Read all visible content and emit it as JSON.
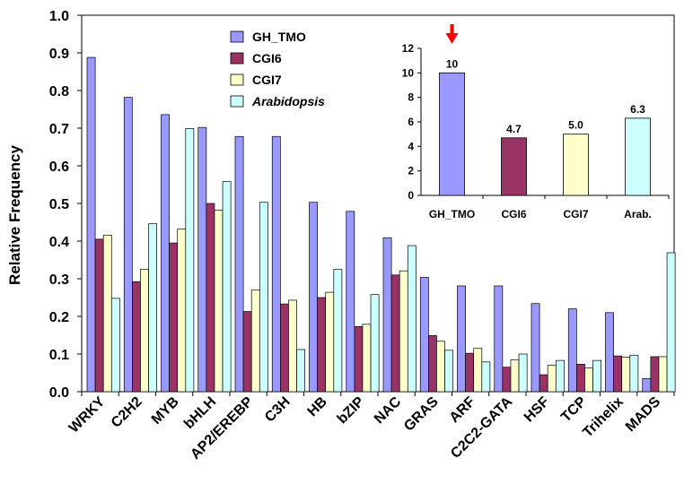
{
  "chart_data": {
    "main": {
      "type": "bar",
      "ylabel": "Relative Frequency",
      "ylim": [
        0,
        1.0
      ],
      "yticks": [
        "0.0",
        "0.1",
        "0.2",
        "0.3",
        "0.4",
        "0.5",
        "0.6",
        "0.7",
        "0.8",
        "0.9",
        "1.0"
      ],
      "categories": [
        "WRKY",
        "C2H2",
        "MYB",
        "bHLH",
        "AP2/EREBP",
        "C3H",
        "HB",
        "bZIP",
        "NAC",
        "GRAS",
        "ARF",
        "C2C2-GATA",
        "HSF",
        "TCP",
        "Trihelix",
        "MADS"
      ],
      "series": [
        {
          "name": "GH_TMO",
          "color": "#9999ff",
          "values": [
            0.888,
            0.782,
            0.736,
            0.702,
            0.678,
            0.678,
            0.503,
            0.479,
            0.409,
            0.304,
            0.281,
            0.281,
            0.234,
            0.22,
            0.21,
            0.035
          ]
        },
        {
          "name": "CGI6",
          "color": "#993366",
          "values": [
            0.405,
            0.292,
            0.395,
            0.5,
            0.213,
            0.233,
            0.25,
            0.173,
            0.31,
            0.149,
            0.102,
            0.065,
            0.045,
            0.073,
            0.095,
            0.093
          ]
        },
        {
          "name": "CGI7",
          "color": "#ffffcc",
          "values": [
            0.416,
            0.325,
            0.432,
            0.482,
            0.27,
            0.243,
            0.264,
            0.179,
            0.321,
            0.134,
            0.115,
            0.085,
            0.07,
            0.063,
            0.092,
            0.093
          ]
        },
        {
          "name": "Arabidopsis",
          "color": "#ccffff",
          "values": [
            0.248,
            0.446,
            0.699,
            0.558,
            0.503,
            0.112,
            0.325,
            0.258,
            0.388,
            0.11,
            0.079,
            0.1,
            0.083,
            0.083,
            0.097,
            0.369
          ]
        }
      ],
      "legend": {
        "position": "top-center",
        "entries": [
          "GH_TMO",
          "CGI6",
          "CGI7",
          "Arabidopsis"
        ]
      }
    },
    "inset": {
      "type": "bar",
      "ylim": [
        0,
        12
      ],
      "yticks": [
        "0",
        "2",
        "4",
        "6",
        "8",
        "10",
        "12"
      ],
      "categories": [
        "GH_TMO",
        "CGI6",
        "CGI7",
        "Arab."
      ],
      "values": [
        10,
        4.7,
        5.0,
        6.3
      ],
      "data_labels": [
        "10",
        "4.7",
        "5.0",
        "6.3"
      ],
      "colors": [
        "#9999ff",
        "#993366",
        "#ffffcc",
        "#ccffff"
      ],
      "marker": {
        "type": "arrow",
        "category": "GH_TMO",
        "color": "#ff0000"
      }
    }
  }
}
